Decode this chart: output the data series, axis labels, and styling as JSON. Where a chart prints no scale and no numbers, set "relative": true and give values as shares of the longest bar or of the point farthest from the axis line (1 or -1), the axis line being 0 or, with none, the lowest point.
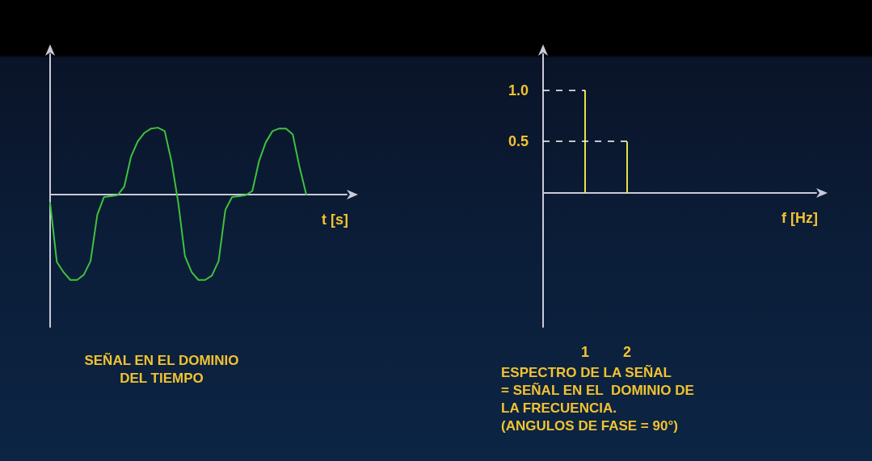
{
  "chart_data": [
    {
      "type": "line",
      "title": "SEÑAL EN EL DOMINIO\nDEL TIEMPO",
      "xlabel": "t [s]",
      "relative": true,
      "marker": "none",
      "grid": false,
      "categories": [
        null,
        null,
        null,
        null,
        null,
        null,
        null,
        null,
        null,
        null,
        null,
        null,
        null,
        null,
        null,
        null,
        null,
        null,
        null,
        null,
        null,
        null,
        null,
        null,
        null,
        null,
        null,
        null,
        null,
        null,
        null,
        null,
        null,
        null,
        null,
        null,
        null,
        null,
        null,
        null,
        null,
        null,
        null,
        null,
        null
      ],
      "series": [
        {
          "color": "#3ec23e",
          "values": [
            -0.1,
            -0.79,
            -0.91,
            -1,
            -1,
            -0.94,
            -0.78,
            -0.24,
            -0.03,
            -0.02,
            -0.01,
            0.09,
            0.44,
            0.62,
            0.72,
            0.77,
            0.78,
            0.74,
            0.39,
            -0.09,
            -0.72,
            -0.91,
            -1,
            -1,
            -0.95,
            -0.78,
            -0.18,
            -0.03,
            -0.02,
            -0.01,
            0.04,
            0.39,
            0.61,
            0.74,
            0.77,
            0.77,
            0.7,
            0.32,
            0,
            null,
            null,
            null,
            null,
            null,
            null
          ]
        }
      ]
    },
    {
      "type": "bar",
      "title": "ESPECTRO DE LA SEÑAL\n= SEÑAL EN EL  DOMINIO DE\nLA FRECUENCIA.\n(ANGULOS DE FASE = 90°)",
      "xlabel": "f [Hz]",
      "grid": false,
      "x": [
        1,
        2
      ],
      "series": [
        {
          "color": "#e6e04a",
          "values": [
            1.0,
            0.5
          ]
        }
      ],
      "xlim": [
        0,
        6.5
      ],
      "xticks": [
        1,
        2
      ],
      "ylim": [
        -1.3,
        1.35
      ],
      "yticks": [
        {
          "value": 0.5,
          "label": "0.5"
        },
        {
          "value": 1,
          "label": "1.0"
        }
      ]
    }
  ]
}
